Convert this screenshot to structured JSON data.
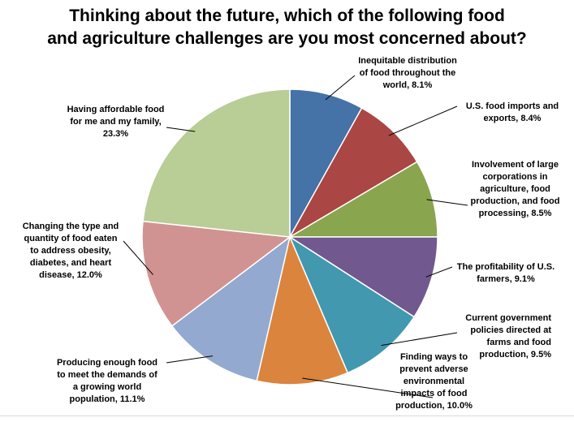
{
  "chart_data": {
    "type": "pie",
    "title": "Thinking about the future, which of the following food and agriculture challenges are you most concerned about?",
    "title_lines": [
      "Thinking about the future, which of the following food",
      "and agriculture challenges are you most concerned about?"
    ],
    "start_angle_deg": 0,
    "direction": "clockwise",
    "legend": "none",
    "slices": [
      {
        "label": "Inequitable distribution of food throughout the world",
        "value": 8.1,
        "label_text": "Inequitable distribution\nof food throughout the\nworld, 8.1%",
        "color": "#4572A7"
      },
      {
        "label": "U.S. food imports and exports",
        "value": 8.4,
        "label_text": "U.S. food imports and\nexports, 8.4%",
        "color": "#AA4643"
      },
      {
        "label": "Involvement of large corporations in agriculture, food production, and food processing",
        "value": 8.5,
        "label_text": "Involvement of large\ncorporations in\nagriculture, food\nproduction, and food\nprocessing, 8.5%",
        "color": "#89A54E"
      },
      {
        "label": "The profitability of U.S. farmers",
        "value": 9.1,
        "label_text": "The profitability of U.S.\nfarmers, 9.1%",
        "color": "#71588F"
      },
      {
        "label": "Current government policies directed at farms and food production",
        "value": 9.5,
        "label_text": "Current government\npolicies directed at\nfarms and food\nproduction, 9.5%",
        "color": "#4198AF"
      },
      {
        "label": "Finding ways to prevent adverse environmental impacts of food production",
        "value": 10.0,
        "label_text": "Finding ways to\nprevent adverse\nenvironmental\nimpacts of food\nproduction, 10.0%",
        "color": "#DB843D"
      },
      {
        "label": "Producing enough food to meet the demands of a growing world population",
        "value": 11.1,
        "label_text": "Producing enough food\nto meet the demands of\na growing world\npopulation, 11.1%",
        "color": "#93A9CF"
      },
      {
        "label": "Changing the type and quantity of food eaten to address obesity, diabetes, and heart disease",
        "value": 12.0,
        "label_text": "Changing the type and\nquantity of food eaten\nto address obesity,\ndiabetes, and heart\ndisease, 12.0%",
        "color": "#D19392"
      },
      {
        "label": "Having affordable food for me and my family",
        "value": 23.3,
        "label_text": "Having affordable food\nfor me and my family,\n23.3%",
        "color": "#B9CD96"
      }
    ]
  }
}
